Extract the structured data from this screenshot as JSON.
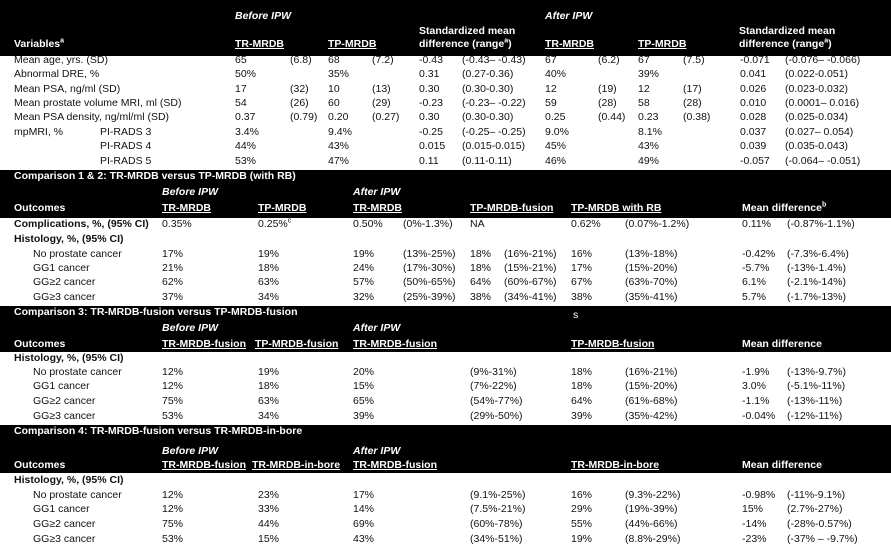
{
  "baseline": {
    "group_headers": [
      "Before IPW",
      "After IPW"
    ],
    "smd_headers": [
      "Standardized mean",
      "Standardized mean"
    ],
    "column_headers": [
      {
        "text": "Variables",
        "sup": "a"
      },
      "TR-MRDB",
      "TP-MRDB",
      {
        "text": "difference (range",
        "sup": "a",
        "tail": ")"
      },
      "TR-MRDB",
      "TP-MRDB",
      {
        "text": "difference (range",
        "sup": "a",
        "tail": ")"
      }
    ],
    "rows": [
      {
        "label": "Mean age, yrs. (SD)",
        "cells": [
          "65",
          "(6.8)",
          "68",
          "(7.2)",
          "-0.43",
          "(-0.43– -0.43)",
          "67",
          "(6.2)",
          "67",
          "(7.5)",
          "-0.071",
          "(-0.076– -0.066)"
        ]
      },
      {
        "label": "Abnormal DRE, %",
        "cells": [
          "50%",
          null,
          "35%",
          null,
          "0.31",
          "(0.27-0.36)",
          "40%",
          null,
          "39%",
          null,
          "0.041",
          "(0.022-0.051)"
        ]
      },
      {
        "label": "Mean PSA, ng/ml (SD)",
        "cells": [
          "17",
          "(32)",
          "10",
          "(13)",
          "0.30",
          "(0.30-0.30)",
          "12",
          "(19)",
          "12",
          "(17)",
          "0.026",
          "(0.023-0.032)"
        ]
      },
      {
        "label": "Mean prostate volume MRI, ml (SD)",
        "cells": [
          "54",
          "(26)",
          "60",
          "(29)",
          "-0.23",
          "(-0.23– -0.22)",
          "59",
          "(28)",
          "58",
          "(28)",
          "0.010",
          "(0.0001– 0.016)"
        ]
      },
      {
        "label": "Mean PSA density, ng/ml/ml (SD)",
        "cells": [
          "0.37",
          "(0.79)",
          "0.20",
          "(0.27)",
          "0.30",
          "(0.30-0.30)",
          "0.25",
          "(0.44)",
          "0.23",
          "(0.38)",
          "0.028",
          "(0.025-0.034)"
        ]
      },
      {
        "label": "mpMRI, %",
        "sublabel": "PI-RADS 3",
        "cells": [
          "3.4%",
          null,
          "9.4%",
          null,
          "-0.25",
          "(-0.25– -0.25)",
          "9.0%",
          null,
          "8.1%",
          null,
          "0.037",
          "(0.027– 0.054)"
        ]
      },
      {
        "sublabel": "PI-RADS 4",
        "cells": [
          "44%",
          null,
          "43%",
          null,
          "0.015",
          "(0.015-0.015)",
          "45%",
          null,
          "43%",
          null,
          "0.039",
          "(0.035-0.043)"
        ]
      },
      {
        "sublabel": "PI-RADS 5",
        "cells": [
          "53%",
          null,
          "47%",
          null,
          "0.11",
          "(0.11-0.11)",
          "46%",
          null,
          "49%",
          null,
          "-0.057",
          "(-0.064– -0.051)"
        ]
      }
    ]
  },
  "comparisons": [
    {
      "title": "Comparison 1 & 2: TR-MRDB versus TP-MRDB (with RB)",
      "group_headers": [
        "Before IPW",
        "After IPW"
      ],
      "column_headers": [
        "Outcomes",
        "TR-MRDB",
        "TP-MRDB",
        "TR-MRDB",
        "TP-MRDB-fusion",
        "TP-MRDB with RB",
        {
          "text": "Mean difference",
          "sup": "b"
        }
      ],
      "rows": [
        {
          "heading": "Complications, %, (95% CI)",
          "cells": [
            "0.35%",
            {
              "text": "0.25%",
              "sup": "c"
            },
            "0.50%",
            "(0%-1.3%)",
            "NA",
            null,
            "0.62%",
            "(0.07%-1.2%)",
            "0.11%",
            "(-0.87%-1.1%)"
          ]
        },
        {
          "heading": "Histology, %, (95% CI)"
        },
        {
          "label": "No prostate cancer",
          "cells": [
            "17%",
            "19%",
            "19%",
            "(13%-25%)",
            "18%",
            "(16%-21%)",
            "16%",
            "(13%-18%)",
            "-0.42%",
            "(-7.3%-6.4%)"
          ]
        },
        {
          "label": "GG1 cancer",
          "cells": [
            "21%",
            "18%",
            "24%",
            "(17%-30%)",
            "18%",
            "(15%-21%)",
            "17%",
            "(15%-20%)",
            "-5.7%",
            "(-13%-1.4%)"
          ]
        },
        {
          "label": "GG≥2 cancer",
          "cells": [
            "62%",
            "63%",
            "57%",
            "(50%-65%)",
            "64%",
            "(60%-67%)",
            "67%",
            "(63%-70%)",
            "6.1%",
            "(-2.1%-14%)"
          ]
        },
        {
          "label": "GG≥3 cancer",
          "cells": [
            "37%",
            "34%",
            "32%",
            "(25%-39%)",
            "38%",
            "(34%-41%)",
            "38%",
            "(35%-41%)",
            "5.7%",
            "(-1.7%-13%)"
          ]
        }
      ]
    },
    {
      "title": "Comparison 3: TR-MRDB-fusion versus TP-MRDB-fusion",
      "stray_mark": "s",
      "group_headers": [
        "Before IPW",
        "After IPW"
      ],
      "column_headers": [
        "Outcomes",
        "TR-MRDB-fusion",
        "TP-MRDB-fusion",
        "TR-MRDB-fusion",
        "TP-MRDB-fusion",
        "Mean difference"
      ],
      "rows": [
        {
          "heading": "Histology, %, (95% CI)"
        },
        {
          "label": "No prostate cancer",
          "cells": [
            "12%",
            "19%",
            "20%",
            "(9%-31%)",
            "18%",
            "(16%-21%)",
            "-1.9%",
            "(-13%-9.7%)"
          ]
        },
        {
          "label": "GG1 cancer",
          "cells": [
            "12%",
            "18%",
            "15%",
            "(7%-22%)",
            "18%",
            "(15%-20%)",
            "3.0%",
            "(-5.1%-11%)"
          ]
        },
        {
          "label": "GG≥2 cancer",
          "cells": [
            "75%",
            "63%",
            "65%",
            "(54%-77%)",
            "64%",
            "(61%-68%)",
            "-1.1%",
            "(-13%-11%)"
          ]
        },
        {
          "label": "GG≥3 cancer",
          "cells": [
            "53%",
            "34%",
            "39%",
            "(29%-50%)",
            "39%",
            "(35%-42%)",
            "-0.04%",
            "(-12%-11%)"
          ]
        }
      ]
    },
    {
      "title": "Comparison 4: TR-MRDB-fusion versus TR-MRDB-in-bore",
      "group_headers": [
        "Before IPW",
        "After IPW"
      ],
      "column_headers": [
        "Outcomes",
        "TR-MRDB-fusion",
        "TR-MRDB-in-bore",
        "TR-MRDB-fusion",
        "TR-MRDB-in-bore",
        "Mean difference"
      ],
      "rows": [
        {
          "heading": "Histology, %, (95% CI)"
        },
        {
          "label": "No prostate cancer",
          "cells": [
            "12%",
            "23%",
            "17%",
            "(9.1%-25%)",
            "16%",
            "(9.3%-22%)",
            "-0.98%",
            "(-11%-9.1%)"
          ]
        },
        {
          "label": "GG1 cancer",
          "cells": [
            "12%",
            "33%",
            "14%",
            "(7.5%-21%)",
            "29%",
            "(19%-39%)",
            "15%",
            "(2.7%-27%)"
          ]
        },
        {
          "label": "GG≥2 cancer",
          "cells": [
            "75%",
            "44%",
            "69%",
            "(60%-78%)",
            "55%",
            "(44%-66%)",
            "-14%",
            "(-28%-0.57%)"
          ]
        },
        {
          "label": "GG≥3 cancer",
          "cells": [
            "53%",
            "15%",
            "43%",
            "(34%-51%)",
            "19%",
            "(8.8%-29%)",
            "-23%",
            "(-37% – -9.7%)"
          ]
        }
      ]
    }
  ]
}
